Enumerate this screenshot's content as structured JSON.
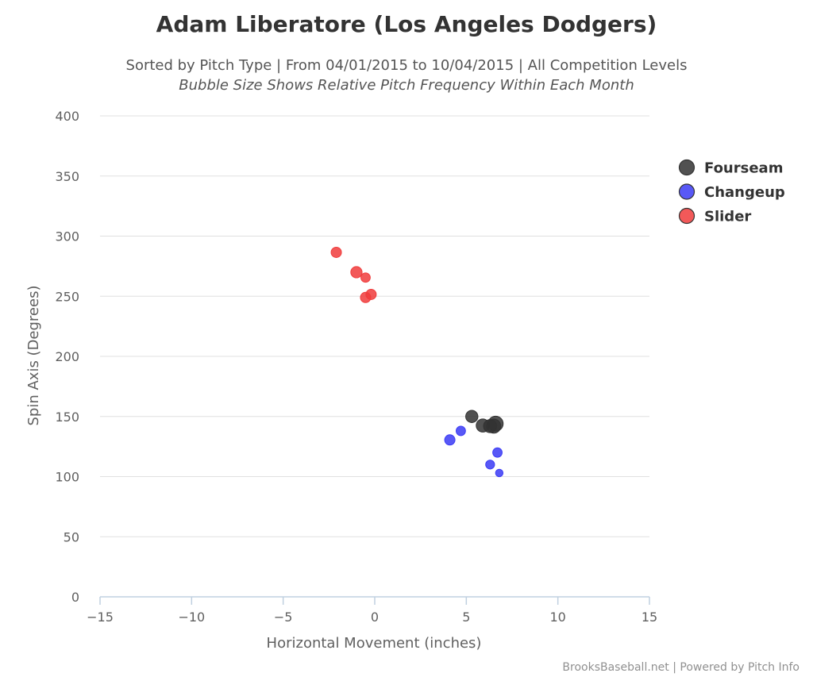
{
  "chart_data": {
    "type": "scatter",
    "title": "Adam Liberatore (Los Angeles Dodgers)",
    "subtitle": "Sorted by Pitch Type | From 04/01/2015 to 10/04/2015 | All Competition Levels",
    "subtitle2": "Bubble Size Shows Relative Pitch Frequency Within Each Month",
    "xlabel": "Horizontal Movement (inches)",
    "ylabel": "Spin Axis (Degrees)",
    "xlim": [
      -15,
      15
    ],
    "ylim": [
      0,
      400
    ],
    "xticks": [
      -15,
      -10,
      -5,
      0,
      5,
      10,
      15
    ],
    "yticks": [
      0,
      50,
      100,
      150,
      200,
      250,
      300,
      350,
      400
    ],
    "xtick_labels": [
      "−15",
      "−10",
      "−5",
      "0",
      "5",
      "10",
      "15"
    ],
    "ytick_labels": [
      "0",
      "50",
      "100",
      "150",
      "200",
      "250",
      "300",
      "350",
      "400"
    ],
    "grid": true,
    "legend_position": "right",
    "credits": "BrooksBaseball.net | Powered by Pitch Info",
    "series": [
      {
        "name": "Fourseam",
        "color": "#333333",
        "points": [
          {
            "x": 5.3,
            "y": 150,
            "size": 0.7
          },
          {
            "x": 5.9,
            "y": 142.5,
            "size": 0.8
          },
          {
            "x": 6.3,
            "y": 142,
            "size": 0.8
          },
          {
            "x": 6.5,
            "y": 142,
            "size": 0.9
          },
          {
            "x": 6.6,
            "y": 144,
            "size": 1.0
          }
        ]
      },
      {
        "name": "Changeup",
        "color": "#3b3bf5",
        "points": [
          {
            "x": 4.1,
            "y": 130.5,
            "size": 0.5
          },
          {
            "x": 4.7,
            "y": 138,
            "size": 0.4
          },
          {
            "x": 6.7,
            "y": 120,
            "size": 0.4
          },
          {
            "x": 6.3,
            "y": 110,
            "size": 0.35
          },
          {
            "x": 6.8,
            "y": 103,
            "size": 0.2
          }
        ]
      },
      {
        "name": "Slider",
        "color": "#f03c3c",
        "points": [
          {
            "x": -2.1,
            "y": 286.5,
            "size": 0.5
          },
          {
            "x": -1.0,
            "y": 270,
            "size": 0.6
          },
          {
            "x": -0.5,
            "y": 265.5,
            "size": 0.4
          },
          {
            "x": -0.2,
            "y": 251.5,
            "size": 0.5
          },
          {
            "x": -0.5,
            "y": 249,
            "size": 0.5
          }
        ]
      }
    ]
  }
}
